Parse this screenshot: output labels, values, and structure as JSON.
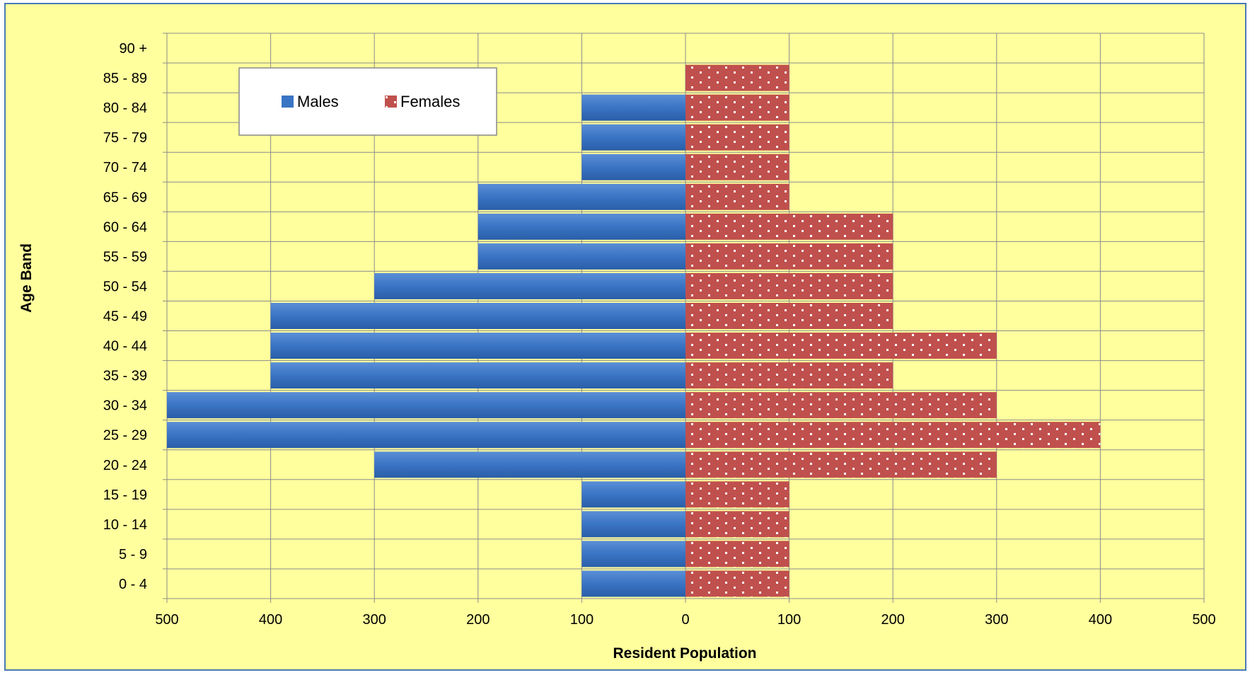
{
  "chart_data": {
    "type": "bar",
    "orientation": "horizontal-population-pyramid",
    "categories": [
      "0 - 4",
      "5 - 9",
      "10 - 14",
      "15 - 19",
      "20 - 24",
      "25 - 29",
      "30 - 34",
      "35 - 39",
      "40 - 44",
      "45 - 49",
      "50 - 54",
      "55 - 59",
      "60 - 64",
      "65 - 69",
      "70 - 74",
      "75 - 79",
      "80 - 84",
      "85 - 89",
      "90 +"
    ],
    "series": [
      {
        "name": "Males",
        "color": "#3a74c4",
        "values": [
          100,
          100,
          100,
          100,
          300,
          500,
          500,
          400,
          400,
          400,
          300,
          200,
          200,
          200,
          100,
          100,
          100,
          0,
          0
        ]
      },
      {
        "name": "Females",
        "color": "#c0504d",
        "values": [
          100,
          100,
          100,
          100,
          300,
          400,
          300,
          200,
          300,
          200,
          200,
          200,
          200,
          100,
          100,
          100,
          100,
          100,
          0
        ]
      }
    ],
    "x_ticks": [
      "500",
      "400",
      "300",
      "200",
      "100",
      "0",
      "100",
      "200",
      "300",
      "400",
      "500"
    ],
    "xlim": [
      -500,
      500
    ],
    "xlabel": "Resident Population",
    "ylabel": "Age Band",
    "title": "",
    "grid": true,
    "legend": "top-left",
    "background_color": "#ffff9e",
    "border_color": "#4a7ab5"
  }
}
